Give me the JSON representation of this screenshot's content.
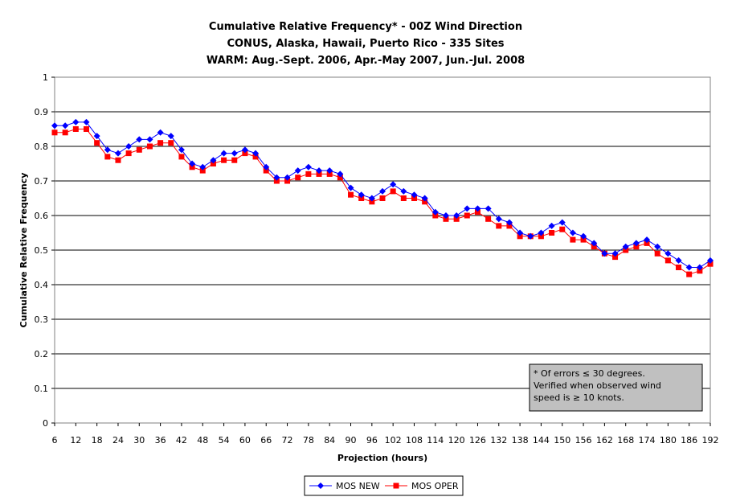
{
  "chart_data": {
    "type": "line",
    "title_lines": [
      "Cumulative Relative Frequency* - 00Z Wind Direction",
      "CONUS, Alaska, Hawaii, Puerto Rico - 335 Sites",
      "WARM: Aug.-Sept. 2006, Apr.-May 2007, Jun.-Jul. 2008"
    ],
    "xlabel": "Projection (hours)",
    "ylabel": "Cumulative Relative Frequency",
    "x_tick_labels": [
      "6",
      "12",
      "18",
      "24",
      "30",
      "36",
      "42",
      "48",
      "54",
      "60",
      "66",
      "72",
      "78",
      "84",
      "90",
      "96",
      "102",
      "108",
      "114",
      "120",
      "126",
      "132",
      "138",
      "144",
      "150",
      "156",
      "162",
      "168",
      "174",
      "180",
      "186",
      "192"
    ],
    "y_tick_labels": [
      "0",
      "0.1",
      "0.2",
      "0.3",
      "0.4",
      "0.5",
      "0.6",
      "0.7",
      "0.8",
      "0.9",
      "1"
    ],
    "xlim": [
      6,
      192
    ],
    "ylim": [
      0,
      1
    ],
    "grid": "horizontal",
    "legend_position": "bottom",
    "note": "* Of errors ≤ 30 degrees. Verified when observed wind speed is ≥ 10 knots.",
    "x": [
      6,
      9,
      12,
      15,
      18,
      21,
      24,
      27,
      30,
      33,
      36,
      39,
      42,
      45,
      48,
      51,
      54,
      57,
      60,
      63,
      66,
      69,
      72,
      75,
      78,
      81,
      84,
      87,
      90,
      93,
      96,
      99,
      102,
      105,
      108,
      111,
      114,
      117,
      120,
      123,
      126,
      129,
      132,
      135,
      138,
      141,
      144,
      147,
      150,
      153,
      156,
      159,
      162,
      165,
      168,
      171,
      174,
      177,
      180,
      183,
      186,
      189,
      192
    ],
    "series": [
      {
        "name": "MOS NEW",
        "color": "#0000ff",
        "marker": "diamond",
        "values": [
          0.86,
          0.86,
          0.87,
          0.87,
          0.83,
          0.79,
          0.78,
          0.8,
          0.82,
          0.82,
          0.84,
          0.83,
          0.79,
          0.75,
          0.74,
          0.76,
          0.78,
          0.78,
          0.79,
          0.78,
          0.74,
          0.71,
          0.71,
          0.73,
          0.74,
          0.73,
          0.73,
          0.72,
          0.68,
          0.66,
          0.65,
          0.67,
          0.69,
          0.67,
          0.66,
          0.65,
          0.61,
          0.6,
          0.6,
          0.62,
          0.62,
          0.62,
          0.59,
          0.58,
          0.55,
          0.54,
          0.55,
          0.57,
          0.58,
          0.55,
          0.54,
          0.52,
          0.49,
          0.49,
          0.51,
          0.52,
          0.53,
          0.51,
          0.49,
          0.47,
          0.45,
          0.45,
          0.47
        ]
      },
      {
        "name": "MOS OPER",
        "color": "#ff0000",
        "marker": "square",
        "values": [
          0.84,
          0.84,
          0.85,
          0.85,
          0.81,
          0.77,
          0.76,
          0.78,
          0.79,
          0.8,
          0.81,
          0.81,
          0.77,
          0.74,
          0.73,
          0.75,
          0.76,
          0.76,
          0.78,
          0.77,
          0.73,
          0.7,
          0.7,
          0.71,
          0.72,
          0.72,
          0.72,
          0.71,
          0.66,
          0.65,
          0.64,
          0.65,
          0.67,
          0.65,
          0.65,
          0.64,
          0.6,
          0.59,
          0.59,
          0.6,
          0.61,
          0.59,
          0.57,
          0.57,
          0.54,
          0.54,
          0.54,
          0.55,
          0.56,
          0.53,
          0.53,
          0.51,
          0.49,
          0.48,
          0.5,
          0.51,
          0.52,
          0.49,
          0.47,
          0.45,
          0.43,
          0.44,
          0.46
        ]
      }
    ]
  }
}
